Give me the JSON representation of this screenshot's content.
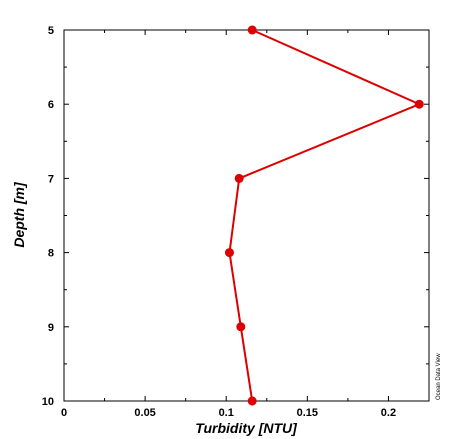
{
  "chart_data": {
    "type": "line",
    "xlabel": "Turbidity [NTU]",
    "ylabel": "Depth [m]",
    "xlim": [
      0,
      0.225
    ],
    "ylim": [
      5,
      10
    ],
    "y_inverted": true,
    "x_ticks": [
      0,
      0.05,
      0.1,
      0.15,
      0.2
    ],
    "x_tick_labels": [
      "0",
      "0.05",
      "0.1",
      "0.15",
      "0.2"
    ],
    "y_ticks": [
      5,
      6,
      7,
      8,
      9,
      10
    ],
    "y_tick_labels": [
      "5",
      "6",
      "7",
      "8",
      "9",
      "10"
    ],
    "grid": false,
    "series": [
      {
        "color": "#dd0000",
        "x": [
          0.116,
          0.219,
          0.108,
          0.102,
          0.109,
          0.116
        ],
        "y": [
          5,
          6,
          7,
          8,
          9,
          10
        ]
      }
    ],
    "watermark": "Ocean Data View"
  }
}
